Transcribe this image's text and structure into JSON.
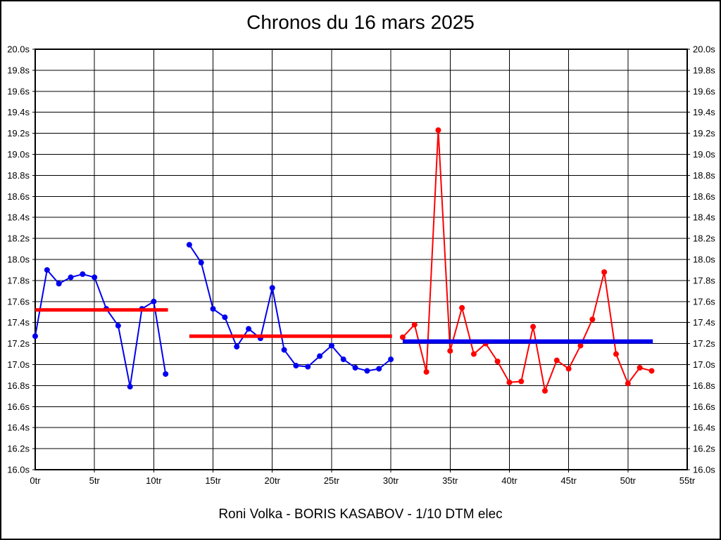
{
  "header": {
    "title": "Chronos du 16 mars 2025"
  },
  "footer": {
    "caption": "Roni Volka - BORIS KASABOV - 1/10 DTM elec"
  },
  "chart_data": {
    "type": "line",
    "title": "Chronos du 16 mars 2025",
    "caption": "Roni Volka - BORIS KASABOV - 1/10 DTM elec",
    "x_unit": "tr",
    "y_unit": "s",
    "xlim": [
      0,
      55
    ],
    "ylim": [
      16.0,
      20.0
    ],
    "x_tick_step": 5,
    "y_tick_step": 0.2,
    "grid": true,
    "x_tick_labels": [
      "0tr",
      "5tr",
      "10tr",
      "15tr",
      "20tr",
      "25tr",
      "30tr",
      "35tr",
      "40tr",
      "45tr",
      "50tr",
      "55tr"
    ],
    "y_tick_labels": [
      "20.0s",
      "19.8s",
      "19.6s",
      "19.4s",
      "19.2s",
      "19.0s",
      "18.8s",
      "18.6s",
      "18.4s",
      "18.2s",
      "18.0s",
      "17.8s",
      "17.6s",
      "17.4s",
      "17.2s",
      "17.0s",
      "16.8s",
      "16.6s",
      "16.4s",
      "16.2s",
      "16.0s"
    ],
    "colors": {
      "blue_series": "#0000f0",
      "red_series": "#ff0000",
      "grid": "#000000"
    },
    "series": [
      {
        "name": "stint-1-lap-times",
        "color": "#0000f0",
        "marker": "circle",
        "x": [
          0,
          1,
          2,
          3,
          4,
          5,
          6,
          7,
          8,
          9,
          10,
          11
        ],
        "y": [
          17.27,
          17.9,
          17.77,
          17.83,
          17.86,
          17.83,
          17.53,
          17.37,
          16.79,
          17.53,
          17.6,
          16.91
        ]
      },
      {
        "name": "stint-2-lap-times",
        "color": "#0000f0",
        "marker": "circle",
        "x": [
          13,
          14,
          15,
          16,
          17,
          18,
          19,
          20,
          21,
          22,
          23,
          24,
          25,
          26,
          27,
          28,
          29,
          30
        ],
        "y": [
          18.14,
          17.97,
          17.53,
          17.45,
          17.17,
          17.34,
          17.25,
          17.73,
          17.14,
          16.99,
          16.98,
          17.08,
          17.18,
          17.05,
          16.97,
          16.94,
          16.96,
          17.05
        ]
      },
      {
        "name": "stint-3-lap-times",
        "color": "#ff0000",
        "marker": "circle",
        "x": [
          31,
          32,
          33,
          34,
          35,
          36,
          37,
          38,
          39,
          40,
          41,
          42,
          43,
          44,
          45,
          46,
          47,
          48,
          49,
          50,
          51,
          52
        ],
        "y": [
          17.26,
          17.38,
          16.93,
          19.23,
          17.13,
          17.54,
          17.1,
          17.2,
          17.03,
          16.83,
          16.84,
          17.36,
          16.75,
          17.04,
          16.96,
          17.18,
          17.43,
          17.88,
          17.1,
          16.82,
          16.97,
          16.94
        ]
      }
    ],
    "reference_lines": [
      {
        "name": "stint-1-average",
        "color": "#ff0000",
        "y": 17.52,
        "x_start": 0,
        "x_end": 11.2
      },
      {
        "name": "stint-2-average",
        "color": "#ff0000",
        "y": 17.27,
        "x_start": 13,
        "x_end": 30.1
      },
      {
        "name": "stint-3-average",
        "color": "#0000f0",
        "y": 17.22,
        "x_start": 31,
        "x_end": 52.1
      }
    ]
  }
}
